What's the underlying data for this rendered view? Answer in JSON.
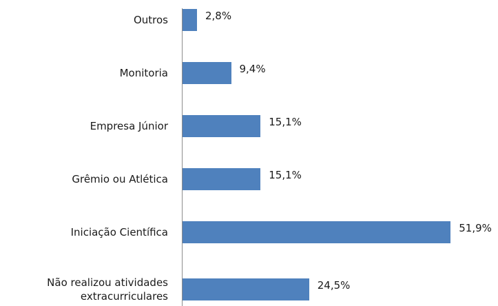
{
  "chart_data": {
    "type": "barh",
    "categories": [
      "Outros",
      "Monitoria",
      "Empresa Júnior",
      "Grêmio ou Atlética",
      "Iniciação Científica",
      "Não realizou atividades extracurriculares"
    ],
    "values": [
      2.8,
      9.4,
      15.1,
      15.1,
      51.9,
      24.5
    ],
    "value_labels": [
      "2,8%",
      "9,4%",
      "15,1%",
      "15,1%",
      "51,9%",
      "24,5%"
    ],
    "color": "#4f81bd"
  }
}
